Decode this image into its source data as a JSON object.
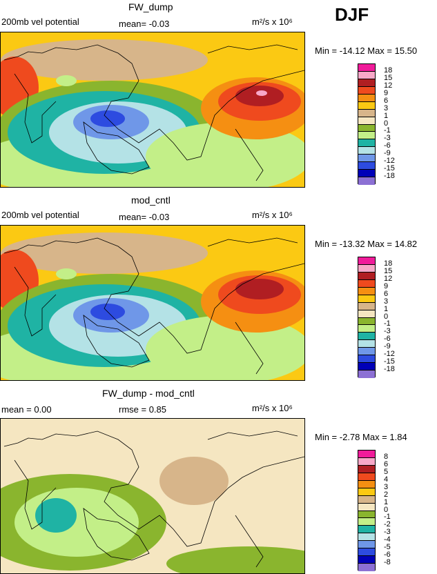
{
  "season": "DJF",
  "panels": [
    {
      "title": "FW_dump",
      "left_label": "200mb vel potential",
      "mean_text": "mean=   -0.03",
      "rmse_text": "",
      "units": "m²/s x 10⁶",
      "minmax": "Min = -14.12 Max =  15.50",
      "levels": [
        "18",
        "15",
        "12",
        "9",
        "6",
        "3",
        "1",
        "0",
        "-1",
        "-3",
        "-6",
        "-9",
        "-12",
        "-15",
        "-18"
      ]
    },
    {
      "title": "mod_cntl",
      "left_label": "200mb vel potential",
      "mean_text": "mean=   -0.03",
      "rmse_text": "",
      "units": "m²/s x 10⁶",
      "minmax": "Min = -13.32 Max =  14.82",
      "levels": [
        "18",
        "15",
        "12",
        "9",
        "6",
        "3",
        "1",
        "0",
        "-1",
        "-3",
        "-6",
        "-9",
        "-12",
        "-15",
        "-18"
      ]
    },
    {
      "title": "FW_dump - mod_cntl",
      "left_label": "mean =    0.00",
      "mean_text": "",
      "rmse_text": "rmse =    0.85",
      "units": "m²/s x 10⁶",
      "minmax": "Min =  -2.78 Max =   1.84",
      "levels": [
        "8",
        "6",
        "5",
        "4",
        "3",
        "2",
        "1",
        "0",
        "-1",
        "-2",
        "-3",
        "-4",
        "-5",
        "-6",
        "-8"
      ]
    }
  ],
  "colors": [
    "#f01b9a",
    "#f7a8c8",
    "#b01e22",
    "#ef4a1e",
    "#f58f12",
    "#fbc913",
    "#d7b58a",
    "#f5e6c1",
    "#8ab52e",
    "#c3ef88",
    "#1fb3a4",
    "#b4e2e6",
    "#6f97e8",
    "#2d4be0",
    "#0000b8",
    "#8c70d4"
  ]
}
